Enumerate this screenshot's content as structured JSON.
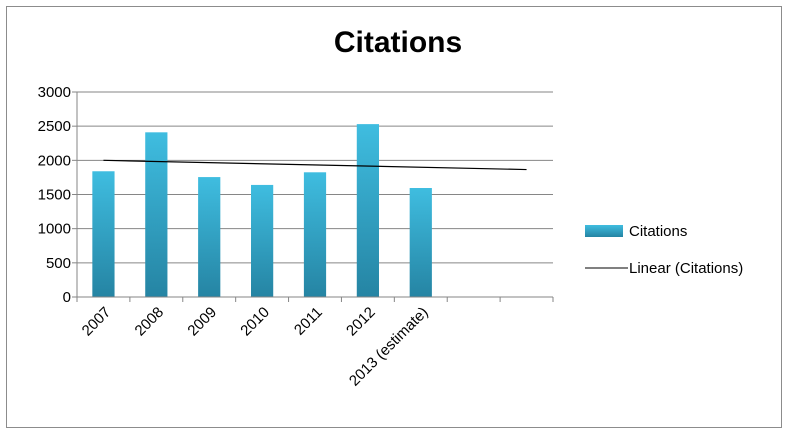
{
  "chart_data": {
    "type": "bar",
    "title": "Citations",
    "xlabel": "",
    "ylabel": "",
    "categories": [
      "2007",
      "2008",
      "2009",
      "2010",
      "2011",
      "2012",
      "2013 (estimate)",
      "",
      ""
    ],
    "series": [
      {
        "name": "Citations",
        "type": "bar",
        "values": [
          1840,
          2410,
          1755,
          1640,
          1825,
          2530,
          1595,
          null,
          null
        ],
        "color": "#3aa8c8"
      },
      {
        "name": "Linear (Citations)",
        "type": "trendline",
        "start_value": 2000,
        "end_value": 1865,
        "color": "#000000"
      }
    ],
    "ylim": [
      0,
      3000
    ],
    "yticks": [
      "0",
      "500",
      "1000",
      "1500",
      "2000",
      "2500",
      "3000"
    ],
    "grid": true,
    "legend_position": "right"
  }
}
